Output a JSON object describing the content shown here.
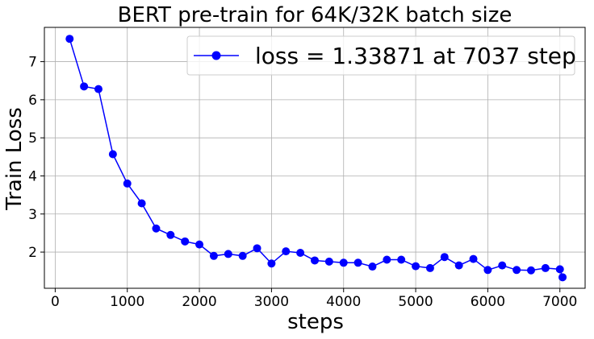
{
  "chart_data": {
    "type": "line",
    "title": "BERT pre-train for 64K/32K batch size",
    "xlabel": "steps",
    "ylabel": "Train Loss",
    "xlim": [
      -150,
      7350
    ],
    "ylim": [
      1.05,
      7.9
    ],
    "xticks": [
      0,
      1000,
      2000,
      3000,
      4000,
      5000,
      6000,
      7000
    ],
    "yticks": [
      2,
      3,
      4,
      5,
      6,
      7
    ],
    "grid": true,
    "legend_position": "top-right",
    "series": [
      {
        "name": "loss = 1.33871 at 7037 step",
        "color": "#0000ff",
        "marker": "circle",
        "x": [
          200,
          400,
          600,
          800,
          1000,
          1200,
          1400,
          1600,
          1800,
          2000,
          2200,
          2400,
          2600,
          2800,
          3000,
          3200,
          3400,
          3600,
          3800,
          4000,
          4200,
          4400,
          4600,
          4800,
          5000,
          5200,
          5400,
          5600,
          5800,
          6000,
          6200,
          6400,
          6600,
          6800,
          7000,
          7037
        ],
        "y": [
          7.6,
          6.35,
          6.28,
          4.57,
          3.8,
          3.28,
          2.62,
          2.45,
          2.28,
          2.2,
          1.9,
          1.95,
          1.9,
          2.1,
          1.7,
          2.02,
          1.98,
          1.78,
          1.75,
          1.72,
          1.72,
          1.62,
          1.8,
          1.8,
          1.63,
          1.58,
          1.87,
          1.65,
          1.82,
          1.53,
          1.65,
          1.53,
          1.52,
          1.58,
          1.55,
          1.33871
        ]
      }
    ]
  }
}
